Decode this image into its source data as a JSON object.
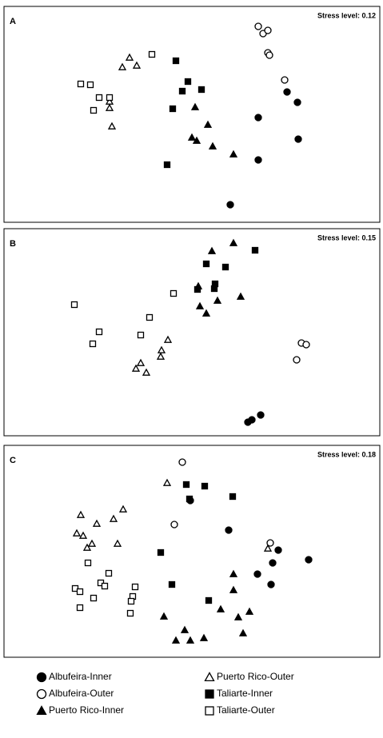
{
  "chart_data": [
    {
      "type": "scatter",
      "label": "A",
      "stress": "Stress level: 0.12",
      "xlim": [
        0,
        470
      ],
      "ylim": [
        0,
        256
      ],
      "series": [
        {
          "marker": "circle",
          "filled": true,
          "x": [
            354,
            367,
            318,
            368,
            318,
            283
          ],
          "y": [
            163,
            150,
            131,
            104,
            78,
            22
          ]
        },
        {
          "marker": "circle",
          "filled": false,
          "x": [
            318,
            324,
            330,
            330,
            332,
            351
          ],
          "y": [
            245,
            236,
            240,
            212,
            209,
            178
          ]
        },
        {
          "marker": "triangle",
          "filled": true,
          "x": [
            239,
            255,
            235,
            241,
            261,
            287
          ],
          "y": [
            144,
            122,
            106,
            102,
            95,
            85
          ]
        },
        {
          "marker": "triangle",
          "filled": false,
          "x": [
            157,
            148,
            166,
            132,
            132,
            135
          ],
          "y": [
            206,
            194,
            196,
            151,
            143,
            120
          ]
        },
        {
          "marker": "square",
          "filled": true,
          "x": [
            215,
            230,
            223,
            247,
            211,
            204
          ],
          "y": [
            202,
            176,
            164,
            166,
            142,
            72
          ]
        },
        {
          "marker": "square",
          "filled": false,
          "x": [
            185,
            96,
            108,
            119,
            132,
            112
          ],
          "y": [
            210,
            173,
            172,
            156,
            156,
            140
          ]
        }
      ]
    },
    {
      "type": "scatter",
      "label": "B",
      "stress": "Stress level: 0.15",
      "xlim": [
        0,
        470
      ],
      "ylim": [
        0,
        259
      ],
      "series": [
        {
          "marker": "circle",
          "filled": true,
          "x": [
            305,
            310,
            321
          ],
          "y": [
            17,
            20,
            26
          ]
        },
        {
          "marker": "circle",
          "filled": false,
          "x": [
            372,
            378,
            366
          ],
          "y": [
            116,
            114,
            95
          ]
        },
        {
          "marker": "triangle",
          "filled": true,
          "x": [
            260,
            287,
            243,
            267,
            296,
            245,
            253
          ],
          "y": [
            231,
            241,
            187,
            169,
            174,
            162,
            153
          ]
        },
        {
          "marker": "triangle",
          "filled": false,
          "x": [
            205,
            197,
            196,
            171,
            165,
            178
          ],
          "y": [
            120,
            107,
            99,
            91,
            84,
            79
          ]
        },
        {
          "marker": "square",
          "filled": true,
          "x": [
            314,
            253,
            277,
            264,
            242,
            263
          ],
          "y": [
            232,
            215,
            211,
            190,
            183,
            184
          ]
        },
        {
          "marker": "square",
          "filled": false,
          "x": [
            88,
            119,
            111,
            212,
            182,
            171
          ],
          "y": [
            164,
            130,
            115,
            178,
            148,
            126
          ]
        }
      ]
    },
    {
      "type": "scatter",
      "label": "C",
      "stress": "Stress level: 0.18",
      "xlim": [
        0,
        470
      ],
      "ylim": [
        0,
        265
      ],
      "series": [
        {
          "marker": "circle",
          "filled": true,
          "x": [
            233,
            281,
            343,
            381,
            336,
            317,
            334
          ],
          "y": [
            196,
            159,
            134,
            122,
            118,
            104,
            91
          ]
        },
        {
          "marker": "circle",
          "filled": false,
          "x": [
            223,
            213,
            333
          ],
          "y": [
            244,
            166,
            143
          ]
        },
        {
          "marker": "triangle",
          "filled": true,
          "x": [
            287,
            287,
            271,
            293,
            307,
            200,
            226,
            215,
            233,
            250,
            299
          ],
          "y": [
            104,
            84,
            60,
            50,
            57,
            51,
            34,
            21,
            21,
            24,
            30
          ]
        },
        {
          "marker": "triangle",
          "filled": false,
          "x": [
            204,
            96,
            116,
            137,
            149,
            91,
            99,
            104,
            110,
            142,
            330
          ],
          "y": [
            218,
            178,
            167,
            173,
            185,
            155,
            152,
            137,
            142,
            142,
            136
          ]
        },
        {
          "marker": "square",
          "filled": true,
          "x": [
            228,
            251,
            286,
            232,
            196,
            210,
            256
          ],
          "y": [
            216,
            214,
            201,
            198,
            131,
            91,
            71
          ]
        },
        {
          "marker": "square",
          "filled": false,
          "x": [
            105,
            131,
            121,
            126,
            164,
            89,
            95,
            112,
            161,
            159,
            95,
            158
          ],
          "y": [
            118,
            105,
            93,
            89,
            88,
            86,
            82,
            74,
            76,
            70,
            62,
            55
          ]
        }
      ]
    }
  ],
  "legend": [
    {
      "name": "Albufeira-Inner",
      "marker": "circle",
      "filled": true
    },
    {
      "name": "Albufeira-Outer",
      "marker": "circle",
      "filled": false
    },
    {
      "name": "Puerto Rico-Inner",
      "marker": "triangle",
      "filled": true
    },
    {
      "name": "Puerto Rico-Outer",
      "marker": "triangle",
      "filled": false
    },
    {
      "name": "Taliarte-Inner",
      "marker": "square",
      "filled": true
    },
    {
      "name": "Taliarte-Outer",
      "marker": "square",
      "filled": false
    }
  ]
}
